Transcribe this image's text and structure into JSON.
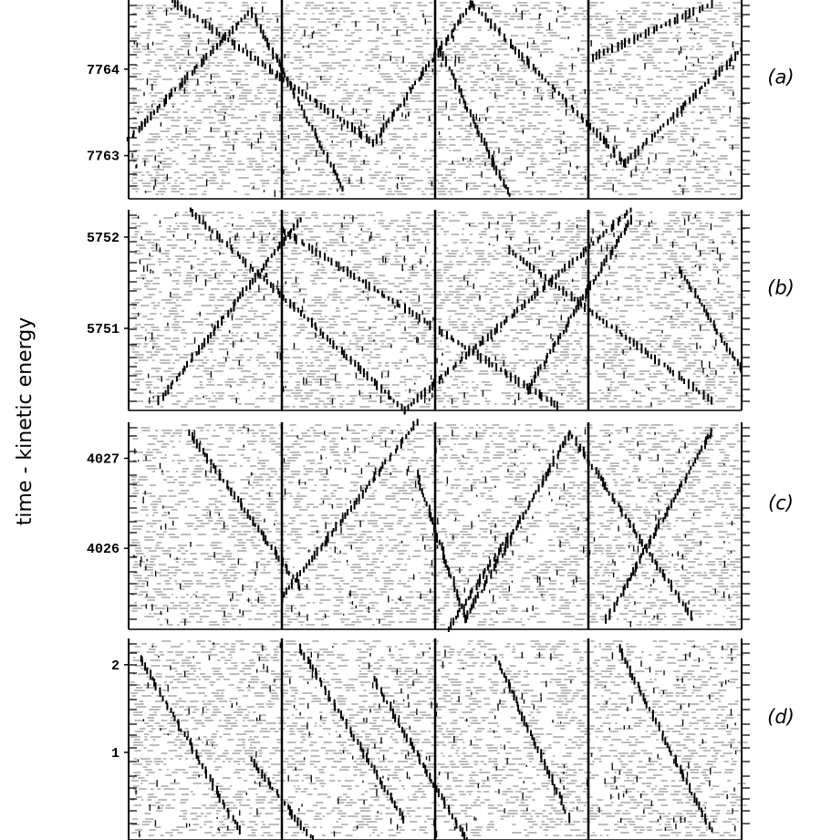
{
  "chart_data": {
    "type": "heatmap",
    "ylabel": "time - kinetic energy",
    "x_dividers": 3,
    "grid": true,
    "panels": [
      {
        "label": "(a)",
        "y_ticks": [
          {
            "value": 7764,
            "label": "7764"
          },
          {
            "value": 7763,
            "label": "7763"
          }
        ],
        "ylim": [
          7762.5,
          7764.8
        ],
        "pattern": [
          {
            "x0": 0.07,
            "y0": 0.0,
            "x1": 0.4,
            "y1": 0.72
          },
          {
            "x0": 0.4,
            "y0": 0.72,
            "x1": 0.56,
            "y1": 0.02
          },
          {
            "x0": 0.56,
            "y0": 0.02,
            "x1": 0.81,
            "y1": 0.82
          },
          {
            "x0": 0.81,
            "y0": 0.82,
            "x1": 1.0,
            "y1": 0.25
          },
          {
            "x0": 0.0,
            "y0": 0.7,
            "x1": 0.2,
            "y1": 0.05
          },
          {
            "x0": 0.2,
            "y0": 0.05,
            "x1": 0.35,
            "y1": 0.95
          },
          {
            "x0": 0.5,
            "y0": 0.2,
            "x1": 0.62,
            "y1": 0.98
          },
          {
            "x0": 0.75,
            "y0": 0.3,
            "x1": 0.95,
            "y1": 0.02
          }
        ]
      },
      {
        "label": "(b)",
        "y_ticks": [
          {
            "value": 5752,
            "label": "5752"
          },
          {
            "value": 5751,
            "label": "5751"
          }
        ],
        "ylim": [
          5750.1,
          5752.3
        ],
        "pattern": [
          {
            "x0": 0.1,
            "y0": 0.0,
            "x1": 0.45,
            "y1": 1.0
          },
          {
            "x0": 0.45,
            "y0": 1.0,
            "x1": 0.82,
            "y1": 0.0
          },
          {
            "x0": 0.28,
            "y0": 0.05,
            "x1": 0.05,
            "y1": 0.95
          },
          {
            "x0": 0.25,
            "y0": 0.1,
            "x1": 0.7,
            "y1": 0.98
          },
          {
            "x0": 0.62,
            "y0": 0.2,
            "x1": 0.95,
            "y1": 0.95
          },
          {
            "x0": 0.82,
            "y0": 0.05,
            "x1": 0.65,
            "y1": 0.9
          },
          {
            "x0": 0.9,
            "y0": 0.3,
            "x1": 1.0,
            "y1": 0.8
          }
        ]
      },
      {
        "label": "(c)",
        "y_ticks": [
          {
            "value": 4027,
            "label": "4027"
          },
          {
            "value": 4026,
            "label": "4026"
          }
        ],
        "ylim": [
          4025.1,
          4027.4
        ],
        "pattern": [
          {
            "x0": 0.25,
            "y0": 0.85,
            "x1": 0.47,
            "y1": 0.0
          },
          {
            "x0": 0.47,
            "y0": 0.25,
            "x1": 0.55,
            "y1": 0.95
          },
          {
            "x0": 0.55,
            "y0": 0.95,
            "x1": 0.72,
            "y1": 0.05
          },
          {
            "x0": 0.72,
            "y0": 0.05,
            "x1": 0.92,
            "y1": 0.95
          },
          {
            "x0": 0.95,
            "y0": 0.05,
            "x1": 0.78,
            "y1": 0.95
          },
          {
            "x0": 0.1,
            "y0": 0.05,
            "x1": 0.28,
            "y1": 0.8
          },
          {
            "x0": 0.62,
            "y0": 0.55,
            "x1": 0.52,
            "y1": 1.0
          }
        ]
      },
      {
        "label": "(d)",
        "y_ticks": [
          {
            "value": 2,
            "label": "2"
          },
          {
            "value": 1,
            "label": "1"
          }
        ],
        "ylim": [
          0.0,
          2.3
        ],
        "pattern": [
          {
            "x0": 0.02,
            "y0": 0.1,
            "x1": 0.18,
            "y1": 0.95
          },
          {
            "x0": 0.28,
            "y0": 0.05,
            "x1": 0.45,
            "y1": 0.9
          },
          {
            "x0": 0.4,
            "y0": 0.2,
            "x1": 0.55,
            "y1": 1.0
          },
          {
            "x0": 0.6,
            "y0": 0.1,
            "x1": 0.72,
            "y1": 0.9
          },
          {
            "x0": 0.8,
            "y0": 0.05,
            "x1": 0.95,
            "y1": 0.95
          },
          {
            "x0": 0.2,
            "y0": 0.6,
            "x1": 0.3,
            "y1": 1.0
          }
        ]
      }
    ]
  }
}
